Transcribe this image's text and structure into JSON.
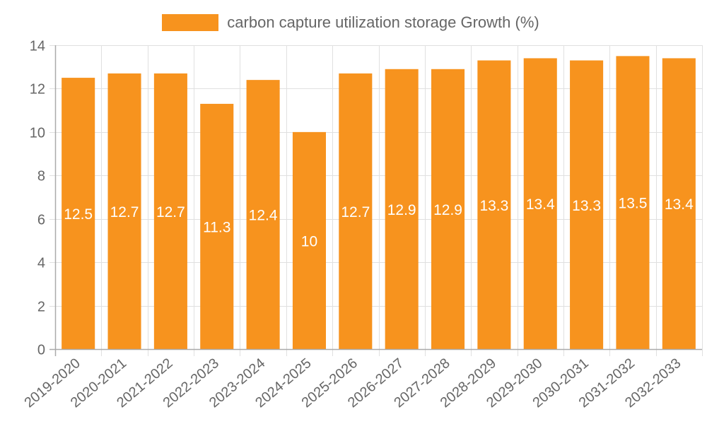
{
  "legend": {
    "label": "carbon capture utilization storage Growth (%)",
    "color": "#f7931e"
  },
  "chart_data": {
    "type": "bar",
    "title": "",
    "xlabel": "",
    "ylabel": "",
    "ylim": [
      0,
      14
    ],
    "yticks": [
      0,
      2,
      4,
      6,
      8,
      10,
      12,
      14
    ],
    "grid": true,
    "legend_position": "top",
    "categories": [
      "2019-2020",
      "2020-2021",
      "2021-2022",
      "2022-2023",
      "2023-2024",
      "2024-2025",
      "2025-2026",
      "2026-2027",
      "2027-2028",
      "2028-2029",
      "2029-2030",
      "2030-2031",
      "2031-2032",
      "2032-2033"
    ],
    "series": [
      {
        "name": "carbon capture utilization storage Growth (%)",
        "color": "#f7931e",
        "values": [
          12.5,
          12.7,
          12.7,
          11.3,
          12.4,
          10,
          12.7,
          12.9,
          12.9,
          13.3,
          13.4,
          13.3,
          13.5,
          13.4
        ]
      }
    ],
    "data_labels": [
      "12.5",
      "12.7",
      "12.7",
      "11.3",
      "12.4",
      "10",
      "12.7",
      "12.9",
      "12.9",
      "13.3",
      "13.4",
      "13.3",
      "13.5",
      "13.4"
    ]
  }
}
